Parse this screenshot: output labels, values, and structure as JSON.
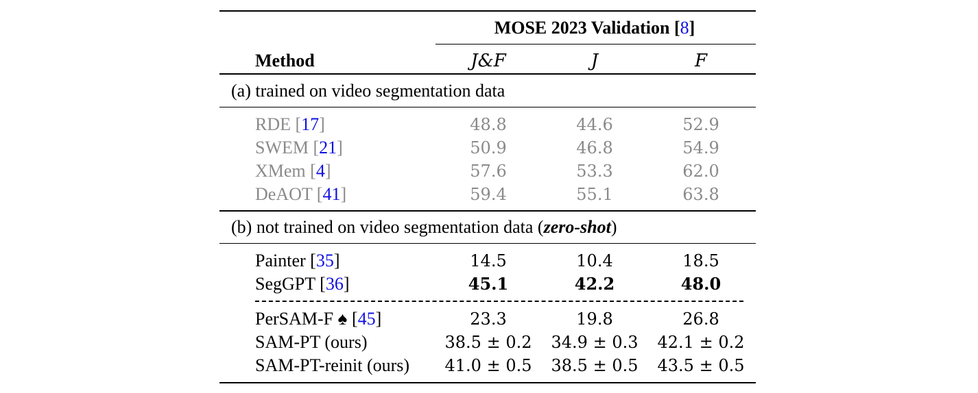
{
  "header": {
    "group_title": "MOSE 2023 Validation",
    "group_ref": "8",
    "method_label": "Method",
    "col_jf": "J&F",
    "col_j": "J",
    "col_f": "F"
  },
  "sections": [
    {
      "title_prefix": "(a) trained on video segmentation data",
      "rows": [
        {
          "method": "RDE",
          "ref": "17",
          "jf": "48.8",
          "j": "44.6",
          "f": "52.9"
        },
        {
          "method": "SWEM",
          "ref": "21",
          "jf": "50.9",
          "j": "46.8",
          "f": "54.9"
        },
        {
          "method": "XMem",
          "ref": "4",
          "jf": "57.6",
          "j": "53.3",
          "f": "62.0"
        },
        {
          "method": "DeAOT",
          "ref": "41",
          "jf": "59.4",
          "j": "55.1",
          "f": "63.8"
        }
      ]
    },
    {
      "title_prefix": "(b) not trained on video segmentation data (",
      "title_emph": "zero-shot",
      "title_suffix": ")",
      "rows": [
        {
          "method": "Painter",
          "ref": "35",
          "jf": "14.5",
          "j": "10.4",
          "f": "18.5"
        },
        {
          "method": "SegGPT",
          "ref": "36",
          "jf": "45.1",
          "j": "42.2",
          "f": "48.0"
        },
        {
          "method": "PerSAM-F ♠",
          "ref": "45",
          "jf": "23.3",
          "j": "19.8",
          "f": "26.8"
        },
        {
          "method": "SAM-PT (ours)",
          "jf": "38.5 ± 0.2",
          "j": "34.9 ± 0.3",
          "f": "42.1 ± 0.2"
        },
        {
          "method": "SAM-PT-reinit (ours)",
          "jf": "41.0 ± 0.5",
          "j": "38.5 ± 0.5",
          "f": "43.5 ± 0.5"
        }
      ]
    }
  ]
}
